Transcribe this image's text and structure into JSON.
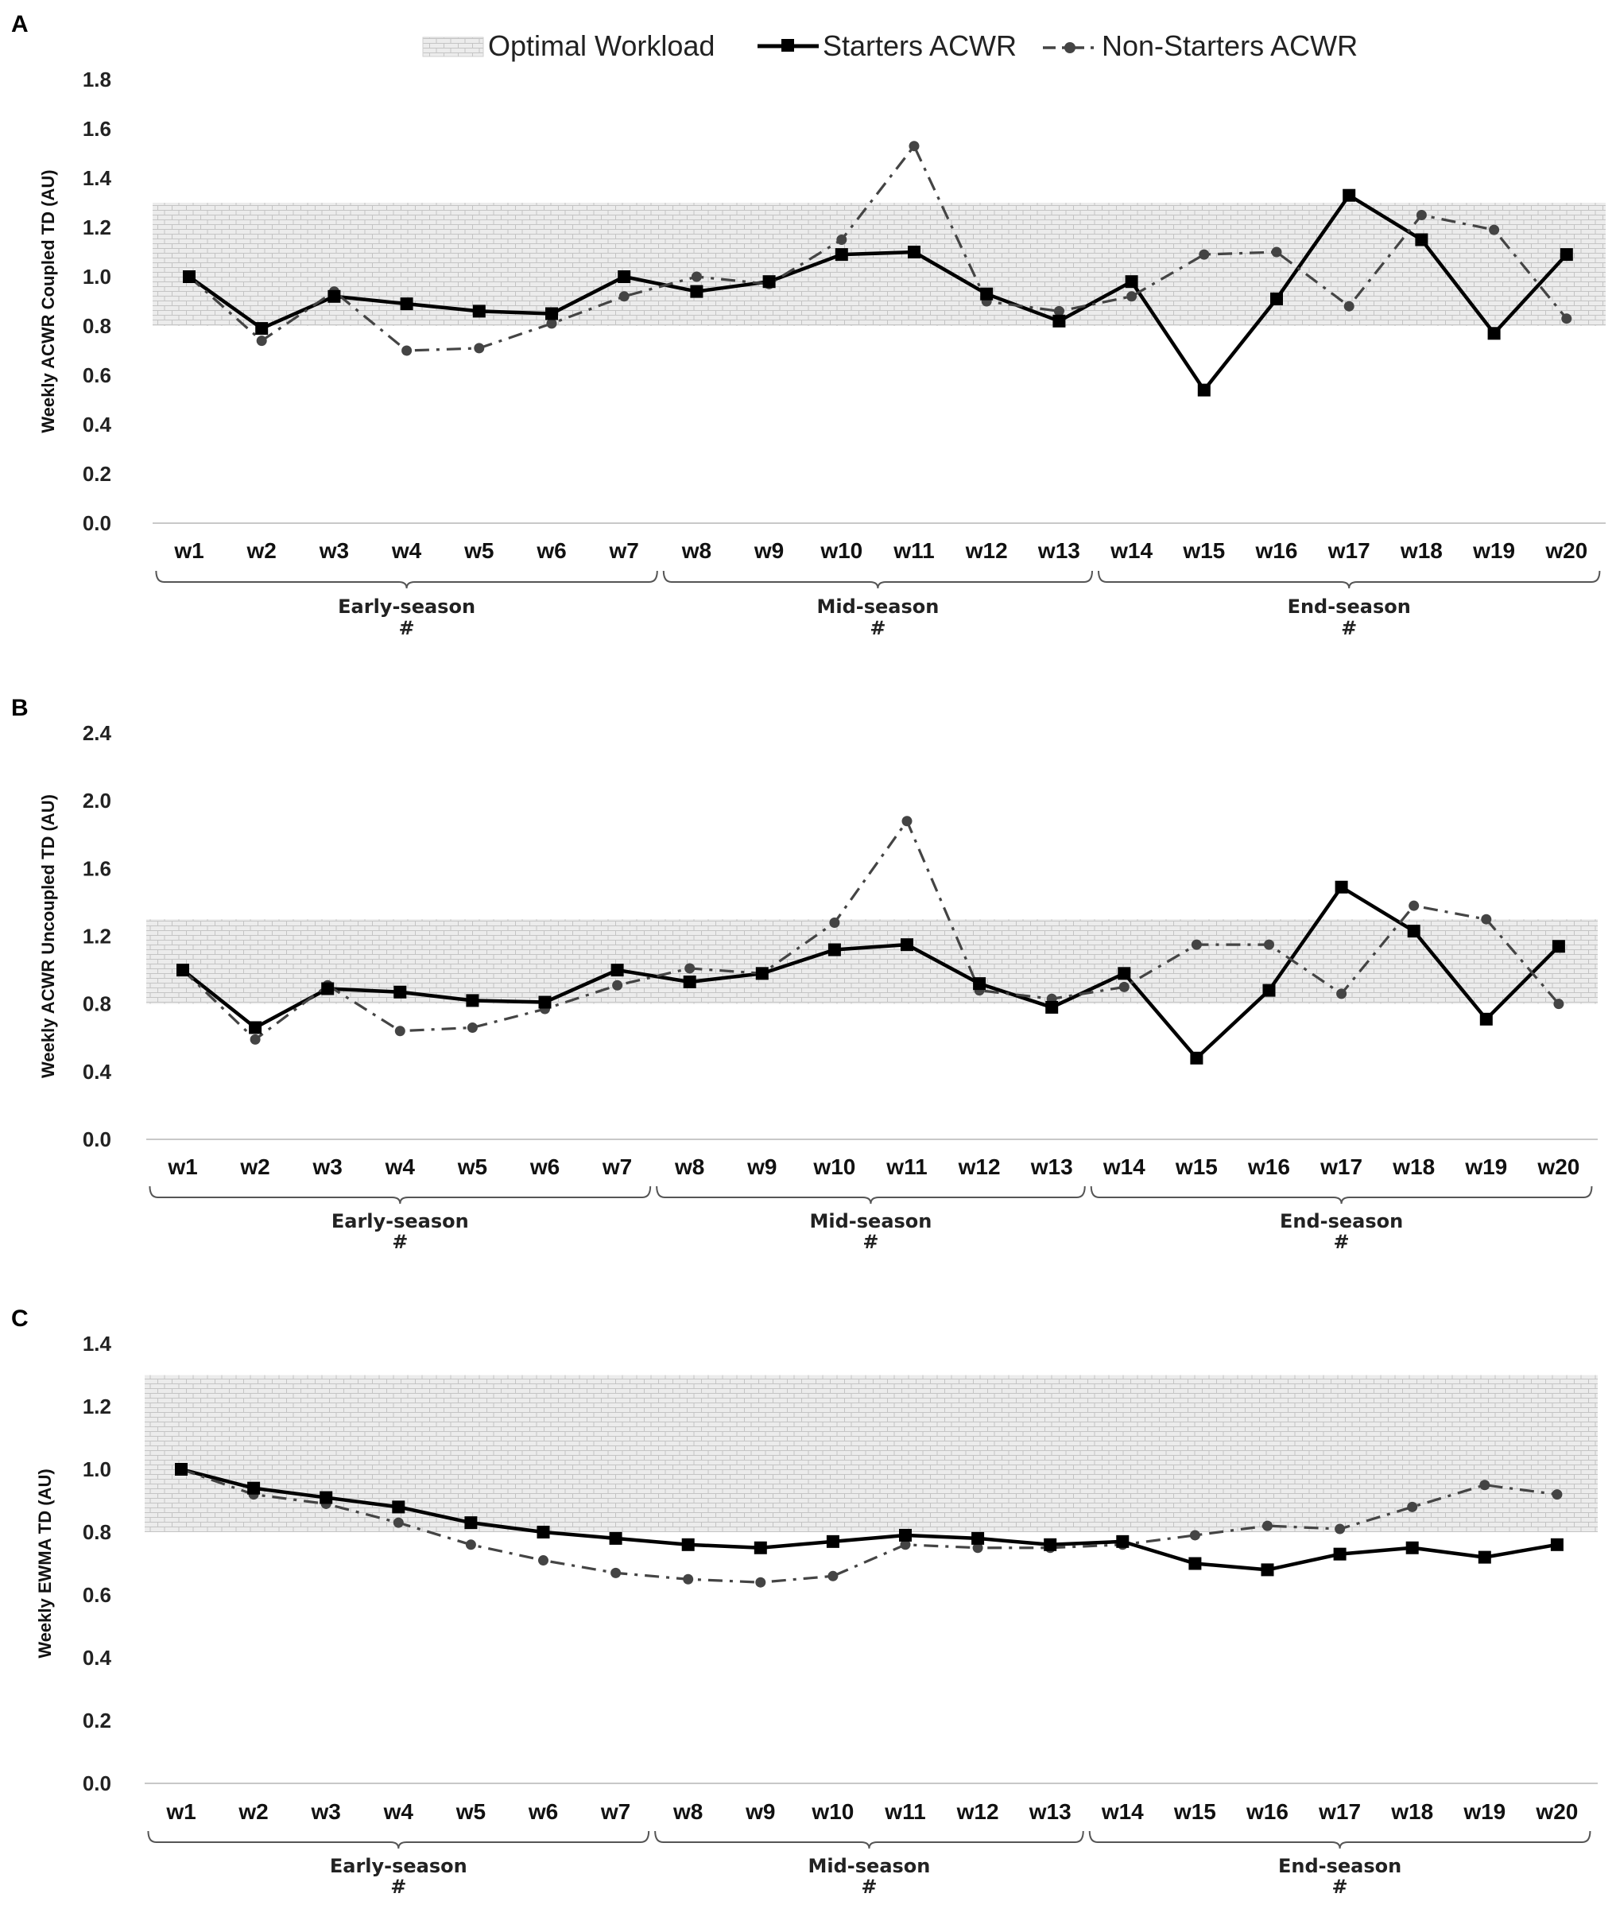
{
  "legend": {
    "optimal": "Optimal Workload",
    "starters": "Starters ACWR",
    "nonstarters": "Non-Starters ACWR"
  },
  "colors": {
    "band_fill": "#ececec",
    "band_brick": "#c4c4c4",
    "starters": "#000000",
    "nonstarters": "#444444",
    "axis": "#c8c8c8"
  },
  "phases": [
    {
      "label": "Early-season",
      "mark": "#",
      "first_week": 1,
      "last_week": 7
    },
    {
      "label": "Mid-season",
      "mark": "#",
      "first_week": 8,
      "last_week": 13
    },
    {
      "label": "End-season",
      "mark": "#",
      "first_week": 14,
      "last_week": 20
    }
  ],
  "chart_data": [
    {
      "panel": "A",
      "type": "line",
      "ylabel": "Weekly ACWR Coupled TD (AU)",
      "ylim": [
        0,
        1.8
      ],
      "yticks": [
        "0.0",
        "0.2",
        "0.4",
        "0.6",
        "0.8",
        "1.0",
        "1.2",
        "1.4",
        "1.6",
        "1.8"
      ],
      "optimal_band": [
        0.8,
        1.3
      ],
      "categories": [
        "w1",
        "w2",
        "w3",
        "w4",
        "w5",
        "w6",
        "w7",
        "w8",
        "w9",
        "w10",
        "w11",
        "w12",
        "w13",
        "w14",
        "w15",
        "w16",
        "w17",
        "w18",
        "w19",
        "w20"
      ],
      "series": [
        {
          "name": "Starters ACWR",
          "values": [
            1.0,
            0.79,
            0.92,
            0.89,
            0.86,
            0.85,
            1.0,
            0.94,
            0.98,
            1.09,
            1.1,
            0.93,
            0.82,
            0.98,
            0.54,
            0.91,
            1.33,
            1.15,
            0.77,
            1.09
          ]
        },
        {
          "name": "Non-Starters ACWR",
          "values": [
            1.0,
            0.74,
            0.94,
            0.7,
            0.71,
            0.81,
            0.92,
            1.0,
            0.97,
            1.15,
            1.53,
            0.9,
            0.86,
            0.92,
            1.09,
            1.1,
            0.88,
            1.25,
            1.19,
            0.83
          ]
        }
      ]
    },
    {
      "panel": "B",
      "type": "line",
      "ylabel": "Weekly ACWR Uncoupled TD (AU)",
      "ylim": [
        0,
        2.4
      ],
      "yticks": [
        "0.0",
        "0.4",
        "0.8",
        "1.2",
        "1.6",
        "2.0",
        "2.4"
      ],
      "optimal_band": [
        0.8,
        1.3
      ],
      "categories": [
        "w1",
        "w2",
        "w3",
        "w4",
        "w5",
        "w6",
        "w7",
        "w8",
        "w9",
        "w10",
        "w11",
        "w12",
        "w13",
        "w14",
        "w15",
        "w16",
        "w17",
        "w18",
        "w19",
        "w20"
      ],
      "series": [
        {
          "name": "Starters ACWR",
          "values": [
            1.0,
            0.66,
            0.89,
            0.87,
            0.82,
            0.81,
            1.0,
            0.93,
            0.98,
            1.12,
            1.15,
            0.92,
            0.78,
            0.98,
            0.48,
            0.88,
            1.49,
            1.23,
            0.71,
            1.14
          ]
        },
        {
          "name": "Non-Starters ACWR",
          "values": [
            1.0,
            0.59,
            0.91,
            0.64,
            0.66,
            0.77,
            0.91,
            1.01,
            0.98,
            1.28,
            1.88,
            0.88,
            0.83,
            0.9,
            1.15,
            1.15,
            0.86,
            1.38,
            1.3,
            0.8
          ]
        }
      ]
    },
    {
      "panel": "C",
      "type": "line",
      "ylabel": "Weekly EWMA TD (AU)",
      "ylim": [
        0,
        1.4
      ],
      "yticks": [
        "0.0",
        "0.2",
        "0.4",
        "0.6",
        "0.8",
        "1.0",
        "1.2",
        "1.4"
      ],
      "optimal_band": [
        0.8,
        1.3
      ],
      "categories": [
        "w1",
        "w2",
        "w3",
        "w4",
        "w5",
        "w6",
        "w7",
        "w8",
        "w9",
        "w10",
        "w11",
        "w12",
        "w13",
        "w14",
        "w15",
        "w16",
        "w17",
        "w18",
        "w19",
        "w20"
      ],
      "series": [
        {
          "name": "Starters ACWR",
          "values": [
            1.0,
            0.94,
            0.91,
            0.88,
            0.83,
            0.8,
            0.78,
            0.76,
            0.75,
            0.77,
            0.79,
            0.78,
            0.76,
            0.77,
            0.7,
            0.68,
            0.73,
            0.75,
            0.72,
            0.76
          ]
        },
        {
          "name": "Non-Starters ACWR",
          "values": [
            1.0,
            0.92,
            0.89,
            0.83,
            0.76,
            0.71,
            0.67,
            0.65,
            0.64,
            0.66,
            0.76,
            0.75,
            0.75,
            0.76,
            0.79,
            0.82,
            0.81,
            0.88,
            0.95,
            0.92
          ]
        }
      ]
    }
  ]
}
